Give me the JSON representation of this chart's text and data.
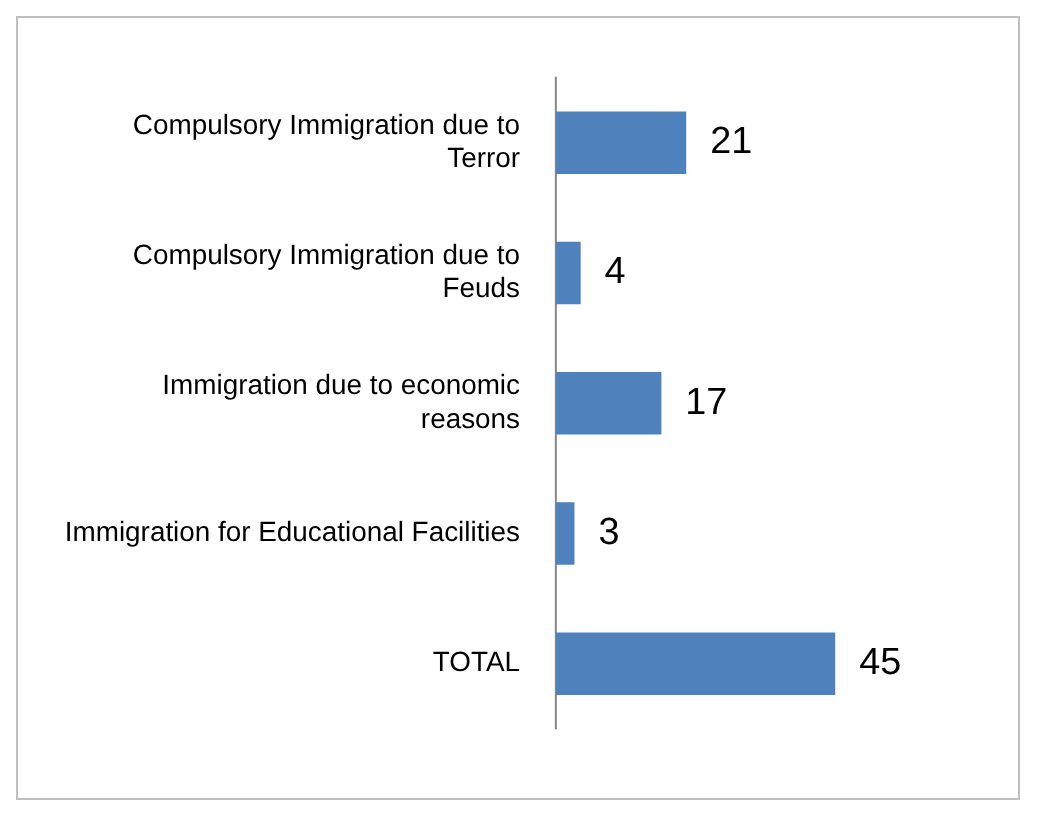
{
  "chart_data": {
    "type": "bar",
    "orientation": "horizontal",
    "categories": [
      "Compulsory Immigration due to Terror",
      "Compulsory Immigration due to Feuds",
      "Immigration due to economic reasons",
      "Immigration for Educational Facilities",
      "TOTAL"
    ],
    "values": [
      21,
      4,
      17,
      3,
      45
    ],
    "color": "#4f81bd",
    "data_labels": true,
    "grid": false,
    "legend": false,
    "tick_labels": "y"
  }
}
